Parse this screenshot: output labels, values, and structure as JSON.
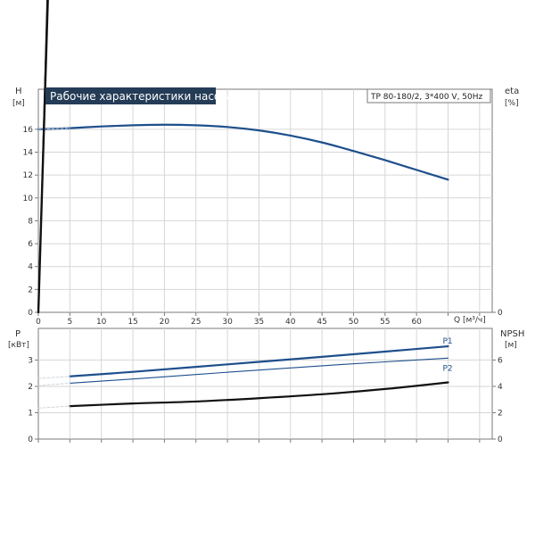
{
  "chart_data": [
    {
      "id": "head",
      "type": "line",
      "title": "Рабочие характеристики насоса",
      "subtitle": "TP 80-180/2, 3*400 V, 50Hz",
      "ylabel": "H",
      "ylabel_unit": "[м]",
      "y2label": "eta",
      "y2label_unit": "[%]",
      "xlabel": "Q [м³/ч]",
      "xlim": [
        0,
        72
      ],
      "ylim": [
        0,
        19.5
      ],
      "yticks": [
        0,
        2,
        4,
        6,
        8,
        10,
        12,
        14,
        16
      ],
      "y2ticks": [
        0,
        20,
        40,
        60,
        80,
        100
      ],
      "y2_scale": 10,
      "xticks": [
        0,
        5,
        10,
        15,
        20,
        25,
        30,
        35,
        40,
        45,
        50,
        55,
        60,
        65,
        70
      ],
      "xtick_labels": [
        "0",
        "5",
        "10",
        "15",
        "20",
        "25",
        "30",
        "35",
        "40",
        "45",
        "50",
        "55",
        "60",
        "",
        ""
      ],
      "grid": true,
      "series": [
        {
          "name": "",
          "axis": "y",
          "color": "#1e4f8c",
          "width": 2.2,
          "x": [
            0,
            5,
            10,
            15,
            20,
            25,
            30,
            35,
            40,
            45,
            50,
            55,
            60,
            65
          ],
          "y": [
            16.0,
            16.1,
            16.25,
            16.35,
            16.4,
            16.35,
            16.2,
            15.9,
            15.45,
            14.85,
            14.1,
            13.3,
            12.45,
            11.6
          ]
        },
        {
          "name": "",
          "axis": "y",
          "color": "#cfd5db",
          "width": 1.0,
          "dash": "3,2",
          "x": [
            0,
            5
          ],
          "y": [
            16.0,
            16.1
          ]
        },
        {
          "name": "",
          "axis": "y2",
          "color": "#111111",
          "width": 1.0,
          "x": [
            0,
            5,
            10,
            15,
            20,
            25,
            30,
            35,
            40,
            45,
            50,
            55,
            60,
            65
          ],
          "y": [
            0,
            10,
            19.5,
            28,
            35.5,
            42,
            48,
            53.5,
            58.5,
            62.5,
            65,
            66.5,
            67.5,
            66.5
          ]
        },
        {
          "name": "",
          "axis": "y2",
          "color": "#111111",
          "width": 2.4,
          "x": [
            0,
            5,
            10,
            15,
            20,
            25,
            30,
            35,
            40,
            45,
            50,
            55,
            60,
            65
          ],
          "y": [
            0,
            9,
            17.5,
            25.5,
            33,
            39.5,
            45,
            50,
            54.5,
            57.5,
            59.5,
            60,
            59.5,
            58
          ]
        }
      ]
    },
    {
      "id": "power",
      "type": "line",
      "ylabel": "P",
      "ylabel_unit": "[кВт]",
      "y2label": "NPSH",
      "y2label_unit": "[м]",
      "xlim": [
        0,
        72
      ],
      "ylim": [
        0,
        4.2
      ],
      "yticks": [
        0,
        1,
        2,
        3
      ],
      "y2ticks": [
        0,
        2,
        4,
        6
      ],
      "y2_scale": 0.5,
      "xticks": [
        0,
        5,
        10,
        15,
        20,
        25,
        30,
        35,
        40,
        45,
        50,
        55,
        60,
        65,
        70
      ],
      "grid": true,
      "series": [
        {
          "name": "P1",
          "axis": "y",
          "color": "#1e4f8c",
          "width": 2.2,
          "x": [
            5,
            15,
            25,
            35,
            45,
            55,
            65
          ],
          "y": [
            2.38,
            2.55,
            2.74,
            2.93,
            3.12,
            3.32,
            3.52
          ]
        },
        {
          "name": "P2",
          "axis": "y",
          "color": "#1e4f8c",
          "width": 1.1,
          "x": [
            5,
            15,
            25,
            35,
            45,
            55,
            65
          ],
          "y": [
            2.12,
            2.28,
            2.45,
            2.62,
            2.78,
            2.93,
            3.07
          ]
        },
        {
          "name": "",
          "axis": "y2",
          "color": "#111111",
          "width": 2.2,
          "x": [
            5,
            15,
            25,
            35,
            45,
            55,
            65
          ],
          "y": [
            2.5,
            2.7,
            2.85,
            3.1,
            3.4,
            3.8,
            4.3
          ]
        },
        {
          "name": "",
          "axis": "y",
          "color": "#cfd5db",
          "width": 1.0,
          "dash": "3,2",
          "x": [
            0,
            5
          ],
          "y": [
            2.3,
            2.38
          ]
        },
        {
          "name": "",
          "axis": "y",
          "color": "#cfd5db",
          "width": 1.0,
          "dash": "3,2",
          "x": [
            0,
            5
          ],
          "y": [
            2.03,
            2.12
          ]
        },
        {
          "name": "",
          "axis": "y2",
          "color": "#cfd5db",
          "width": 1.0,
          "dash": "3,2",
          "x": [
            0,
            5
          ],
          "y": [
            2.35,
            2.5
          ]
        }
      ]
    }
  ]
}
